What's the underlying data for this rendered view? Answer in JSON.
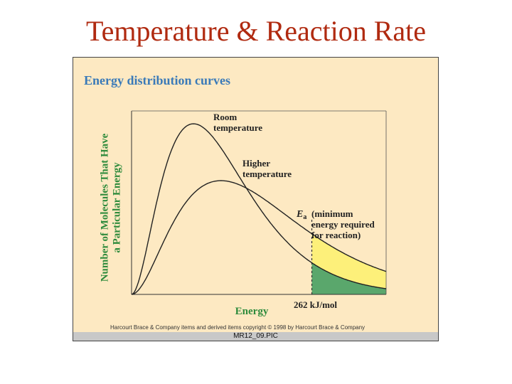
{
  "slide": {
    "title": "Temperature & Reaction Rate"
  },
  "figure": {
    "heading": "Energy distribution curves",
    "copyright": "Harcourt Brace & Company items and derived items copyright © 1998 by Harcourt Brace & Company",
    "caption": "MR12_09.PIC"
  },
  "colors": {
    "title": "#b02a10",
    "background": "#fde9c2",
    "heading": "#3a7ab8",
    "axis_labels": "#2e8b3c",
    "shade_room": "#5aa76c",
    "shade_higher": "#fdf07a"
  },
  "chart_data": {
    "type": "line",
    "ylabel": [
      "Number of Molecules That Have",
      "a Particular Energy"
    ],
    "xlabel": "Energy",
    "threshold": {
      "value": 262,
      "label": "262 kJ/mol",
      "symbol": "E",
      "subscript": "a"
    },
    "series": [
      {
        "label": [
          "Room",
          "temperature"
        ],
        "peak_energy": 90,
        "peak_height": 0.93
      },
      {
        "label": [
          "Higher",
          "temperature"
        ],
        "peak_energy": 130,
        "peak_height": 0.62
      }
    ],
    "annotation": [
      "(minimum",
      "energy required",
      "for reaction)"
    ],
    "x_range": [
      0,
      370
    ],
    "y_range": [
      0,
      1
    ],
    "grid": false
  }
}
